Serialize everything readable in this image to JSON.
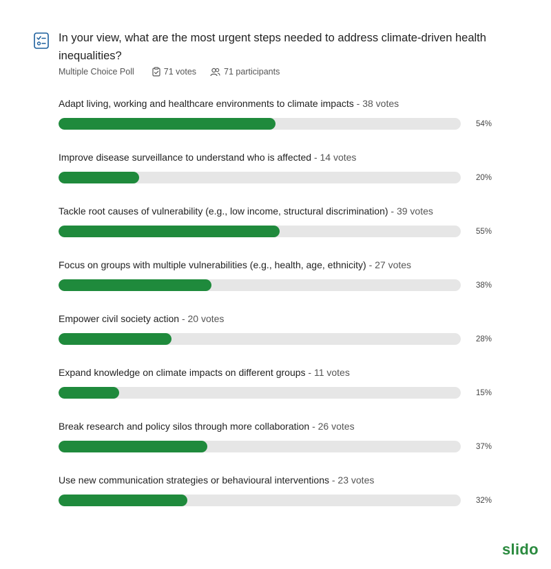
{
  "poll": {
    "question": "In your view, what are the most urgent steps needed to address climate-driven health inequalities?",
    "type_label": "Multiple Choice Poll",
    "votes_label": "71 votes",
    "participants_label": "71 participants"
  },
  "options": [
    {
      "label": "Adapt living, working and healthcare environments to climate impacts",
      "votes": " - 38 votes",
      "percent_label": "54%",
      "percent": 54
    },
    {
      "label": "Improve disease surveillance to understand who is affected",
      "votes": " - 14 votes",
      "percent_label": "20%",
      "percent": 20
    },
    {
      "label": "Tackle root causes of vulnerability (e.g., low income, structural discrimination)",
      "votes": " - 39 votes",
      "percent_label": "55%",
      "percent": 55
    },
    {
      "label": "Focus on groups with multiple vulnerabilities (e.g., health, age, ethnicity)",
      "votes": " - 27 votes",
      "percent_label": "38%",
      "percent": 38
    },
    {
      "label": "Empower civil society action",
      "votes": " - 20 votes",
      "percent_label": "28%",
      "percent": 28
    },
    {
      "label": "Expand knowledge on climate impacts on different groups",
      "votes": " - 11 votes",
      "percent_label": "15%",
      "percent": 15
    },
    {
      "label": "Break research and policy silos through more collaboration",
      "votes": " - 26 votes",
      "percent_label": "37%",
      "percent": 37
    },
    {
      "label": "Use new communication strategies or behavioural interventions",
      "votes": " - 23 votes",
      "percent_label": "32%",
      "percent": 32
    }
  ],
  "branding": {
    "logo_text": "slido"
  },
  "colors": {
    "bar_fill": "#1f8a3c",
    "bar_track": "#e6e6e6",
    "icon": "#1b5e9c",
    "logo": "#2a8a3e"
  },
  "icons": {
    "poll": "checklist-icon",
    "votes": "clipboard-check-icon",
    "participants": "people-icon"
  }
}
